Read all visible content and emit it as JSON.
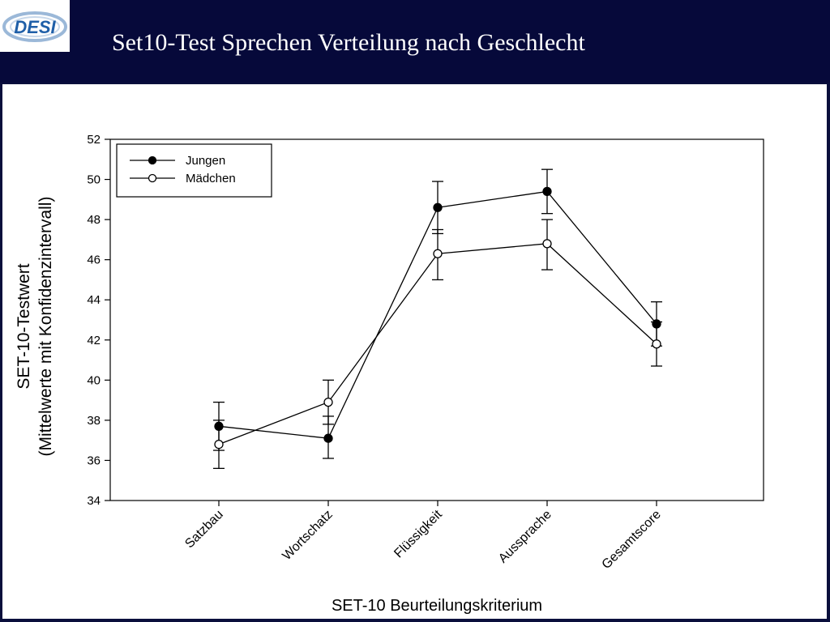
{
  "slide": {
    "title": "Set10-Test Sprechen Verteilung nach Geschlecht",
    "logo_text": "DESI"
  },
  "colors": {
    "header_background": "#06093a",
    "logo_blue": "#1f5fa8",
    "series_color": "#000000"
  },
  "chart_data": {
    "type": "line",
    "xlabel": "SET-10 Beurteilungskriterium",
    "ylabel_lines": [
      "SET-10-Testwert",
      "(Mittelwerte mit Konfidenzintervall)"
    ],
    "categories": [
      "Satzbau",
      "Wortschatz",
      "Flüssigkeit",
      "Aussprache",
      "Gesamtscore"
    ],
    "ylim": [
      34,
      52
    ],
    "yticks": [
      34,
      36,
      38,
      40,
      42,
      44,
      46,
      48,
      50,
      52
    ],
    "grid": false,
    "legend_position": "top-left",
    "series": [
      {
        "name": "Jungen",
        "marker": "filled-circle",
        "values": [
          37.7,
          37.1,
          48.6,
          49.4,
          42.8
        ],
        "ci_low": [
          36.5,
          36.1,
          47.3,
          48.3,
          41.7
        ],
        "ci_high": [
          38.9,
          38.2,
          49.9,
          50.5,
          43.9
        ]
      },
      {
        "name": "Mädchen",
        "marker": "open-circle",
        "values": [
          36.8,
          38.9,
          46.3,
          46.8,
          41.8
        ],
        "ci_low": [
          35.6,
          37.8,
          45.0,
          45.5,
          40.7
        ],
        "ci_high": [
          38.0,
          40.0,
          47.5,
          48.0,
          42.9
        ]
      }
    ]
  }
}
